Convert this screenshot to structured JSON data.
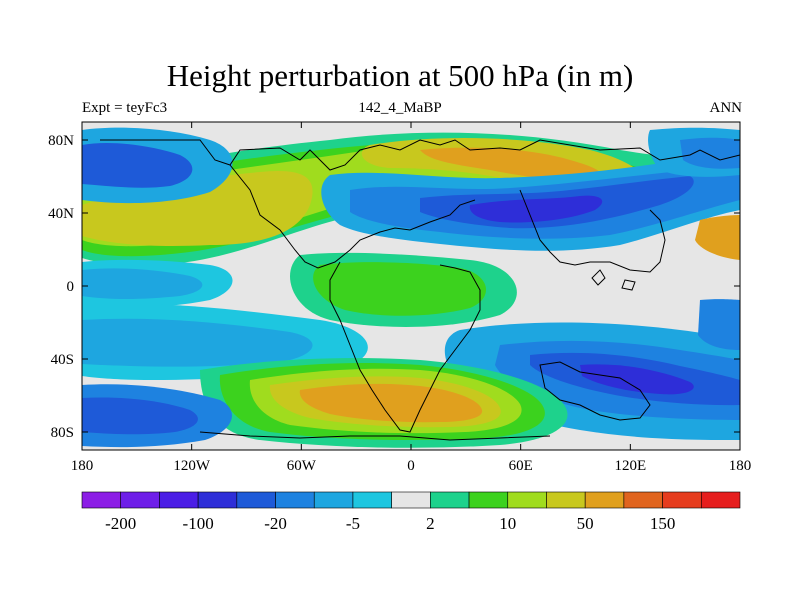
{
  "title": "Height perturbation at 500 hPa (in m)",
  "left_label": "Expt = teyFc3",
  "center_label": "142_4_MaBP",
  "right_label": "ANN",
  "lat_ticks": [
    {
      "label": "80N",
      "lat": 80
    },
    {
      "label": "40N",
      "lat": 40
    },
    {
      "label": "0",
      "lat": 0
    },
    {
      "label": "40S",
      "lat": -40
    },
    {
      "label": "80S",
      "lat": -80
    }
  ],
  "lon_ticks": [
    {
      "label": "180",
      "lon": -180
    },
    {
      "label": "120W",
      "lon": -120
    },
    {
      "label": "60W",
      "lon": -60
    },
    {
      "label": "0",
      "lon": 0
    },
    {
      "label": "60E",
      "lon": 60
    },
    {
      "label": "120E",
      "lon": 120
    },
    {
      "label": "180",
      "lon": 180
    }
  ],
  "colorbar": {
    "colors": [
      "#8c1ee6",
      "#6e1ee8",
      "#4b1ee6",
      "#2e2ed8",
      "#1e5ad8",
      "#1e82e0",
      "#1ea6e0",
      "#1ec6e0",
      "#e6e6e6",
      "#1ed28c",
      "#3cd21e",
      "#a0dc1e",
      "#c8c81e",
      "#e0a01e",
      "#e0641e",
      "#e63c1e",
      "#e61e1e"
    ],
    "labels": [
      {
        "text": "-200",
        "boundary": 1
      },
      {
        "text": "-100",
        "boundary": 3
      },
      {
        "text": "-20",
        "boundary": 5
      },
      {
        "text": "-5",
        "boundary": 7
      },
      {
        "text": "2",
        "boundary": 9
      },
      {
        "text": "10",
        "boundary": 11
      },
      {
        "text": "50",
        "boundary": 13
      },
      {
        "text": "150",
        "boundary": 15
      }
    ]
  }
}
